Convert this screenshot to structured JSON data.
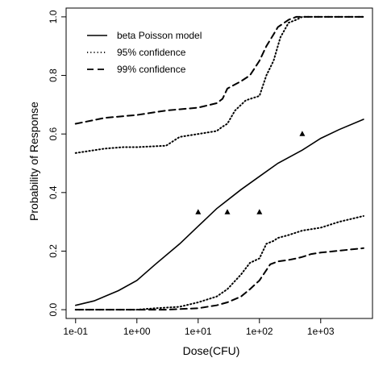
{
  "chart_data": {
    "type": "line",
    "title": "",
    "xlabel": "Dose(CFU)",
    "ylabel": "Probability of Response",
    "x_scale": "log10",
    "xlim": [
      0.07,
      7000
    ],
    "ylim": [
      -0.03,
      1.03
    ],
    "x_ticks": [
      0.1,
      1,
      10,
      100,
      1000
    ],
    "x_tick_labels": [
      "1e-01",
      "1e+00",
      "1e+01",
      "1e+02",
      "1e+03"
    ],
    "y_ticks": [
      0.0,
      0.2,
      0.4,
      0.6,
      0.8,
      1.0
    ],
    "y_tick_labels": [
      "0.0",
      "0.2",
      "0.4",
      "0.6",
      "0.8",
      "1.0"
    ],
    "grid": false,
    "legend": {
      "position": "top-left",
      "entries": [
        {
          "label": "beta Poisson model",
          "style": "solid"
        },
        {
          "label": "95% confidence",
          "style": "dotted"
        },
        {
          "label": "99% confidence",
          "style": "dashed"
        }
      ]
    },
    "series": [
      {
        "name": "beta Poisson model",
        "style": "solid",
        "x": [
          0.1,
          0.2,
          0.5,
          1,
          2,
          5,
          10,
          20,
          50,
          100,
          200,
          500,
          1000,
          2000,
          5000
        ],
        "y": [
          0.015,
          0.03,
          0.065,
          0.1,
          0.155,
          0.225,
          0.285,
          0.345,
          0.41,
          0.455,
          0.5,
          0.545,
          0.585,
          0.615,
          0.65
        ]
      },
      {
        "name": "95% confidence upper",
        "style": "dotted",
        "x": [
          0.1,
          0.3,
          0.6,
          1,
          3,
          5,
          10,
          20,
          25,
          30,
          40,
          60,
          100,
          130,
          170,
          220,
          300,
          400,
          500,
          1000,
          5000
        ],
        "y": [
          0.535,
          0.55,
          0.555,
          0.555,
          0.56,
          0.59,
          0.6,
          0.61,
          0.625,
          0.635,
          0.68,
          0.715,
          0.73,
          0.8,
          0.85,
          0.93,
          0.98,
          0.99,
          1.0,
          1.0,
          1.0
        ]
      },
      {
        "name": "95% confidence lower",
        "style": "dotted",
        "x": [
          0.1,
          0.5,
          1,
          2,
          5,
          10,
          20,
          30,
          50,
          70,
          100,
          130,
          170,
          200,
          300,
          500,
          1000,
          2000,
          5000
        ],
        "y": [
          0.0,
          0.0,
          0.0,
          0.005,
          0.01,
          0.025,
          0.045,
          0.07,
          0.12,
          0.16,
          0.175,
          0.225,
          0.235,
          0.245,
          0.255,
          0.27,
          0.28,
          0.3,
          0.32
        ]
      },
      {
        "name": "99% confidence upper",
        "style": "dashed",
        "x": [
          0.1,
          0.3,
          1,
          3,
          10,
          20,
          25,
          30,
          50,
          70,
          100,
          130,
          170,
          200,
          300,
          400,
          500,
          1000,
          5000
        ],
        "y": [
          0.635,
          0.655,
          0.665,
          0.68,
          0.69,
          0.705,
          0.72,
          0.755,
          0.78,
          0.8,
          0.85,
          0.9,
          0.94,
          0.965,
          0.99,
          1.0,
          1.0,
          1.0,
          1.0
        ]
      },
      {
        "name": "99% confidence lower",
        "style": "dashed",
        "x": [
          0.1,
          1,
          3,
          10,
          20,
          30,
          50,
          70,
          100,
          150,
          200,
          300,
          400,
          500,
          700,
          1000,
          5000
        ],
        "y": [
          0.0,
          0.0,
          0.0,
          0.005,
          0.015,
          0.025,
          0.045,
          0.07,
          0.1,
          0.155,
          0.165,
          0.17,
          0.175,
          0.18,
          0.19,
          0.195,
          0.21
        ]
      }
    ],
    "points": {
      "marker": "triangle",
      "x": [
        10,
        30,
        100,
        500
      ],
      "y": [
        0.333,
        0.333,
        0.333,
        0.6
      ]
    }
  }
}
